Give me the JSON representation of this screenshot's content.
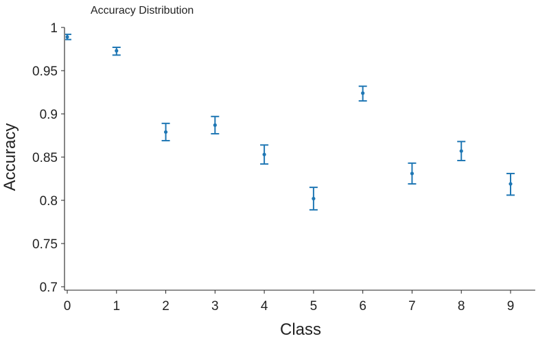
{
  "chart_data": {
    "type": "scatter",
    "title": "Accuracy Distribution",
    "xlabel": "Class",
    "ylabel": "Accuracy",
    "xlim": [
      0,
      9
    ],
    "ylim": [
      0.7,
      1
    ],
    "x_ticks": [
      "0",
      "1",
      "2",
      "3",
      "4",
      "5",
      "6",
      "7",
      "8",
      "9"
    ],
    "y_ticks": [
      "0.7",
      "0.75",
      "0.8",
      "0.85",
      "0.9",
      "0.95",
      "1"
    ],
    "grid": false,
    "series": [
      {
        "x": [
          0,
          1,
          2,
          3,
          4,
          5,
          6,
          7,
          8,
          9
        ],
        "y": [
          0.989,
          0.973,
          0.879,
          0.887,
          0.853,
          0.802,
          0.924,
          0.831,
          0.857,
          0.819
        ],
        "error_low": [
          0.986,
          0.968,
          0.869,
          0.877,
          0.842,
          0.789,
          0.915,
          0.819,
          0.846,
          0.806
        ],
        "error_high": [
          0.992,
          0.977,
          0.889,
          0.897,
          0.864,
          0.815,
          0.932,
          0.843,
          0.868,
          0.831
        ]
      }
    ],
    "colors": {
      "series": "#1f77b4",
      "axis": "#222222"
    }
  }
}
